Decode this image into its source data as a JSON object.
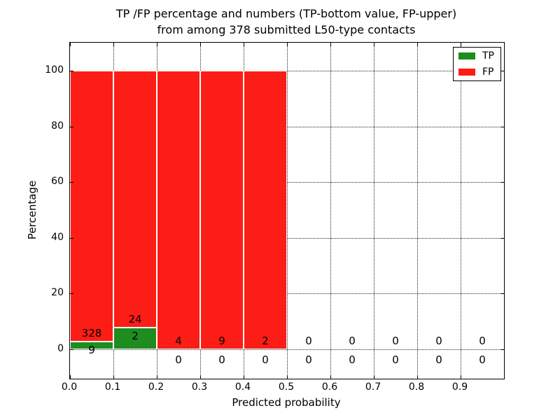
{
  "title": {
    "line1": "TP /FP percentage and numbers (TP-bottom value, FP-upper)",
    "line2": "from among 378 submitted L50-type contacts"
  },
  "legend": {
    "position": "upper right",
    "items": [
      {
        "label": "TP",
        "color": "#1e8c1e"
      },
      {
        "label": "FP",
        "color": "#fc1d16"
      }
    ]
  },
  "chart_data": {
    "type": "bar",
    "stacked": true,
    "title": "TP /FP percentage and numbers (TP-bottom value, FP-upper) from among 378 submitted L50-type contacts",
    "xlabel": "Predicted probability",
    "ylabel": "Percentage",
    "total_contacts": 378,
    "xlim": [
      0.0,
      1.0
    ],
    "ylim": [
      -10.5,
      110
    ],
    "grid": "dotted",
    "x_tick_labels": [
      "0.0",
      "0.1",
      "0.2",
      "0.3",
      "0.4",
      "0.5",
      "0.6",
      "0.7",
      "0.8",
      "0.9"
    ],
    "y_tick_labels": [
      "0",
      "20",
      "40",
      "60",
      "80",
      "100"
    ],
    "y_tick_values": [
      0,
      20,
      40,
      60,
      80,
      100
    ],
    "series": [
      {
        "name": "TP",
        "color": "#1e8c1e"
      },
      {
        "name": "FP",
        "color": "#fc1d16"
      }
    ],
    "bins": [
      {
        "range": [
          0.0,
          0.1
        ],
        "tp_count": 9,
        "fp_count": 328,
        "tp_pct": 2.67,
        "fp_pct": 97.33
      },
      {
        "range": [
          0.1,
          0.2
        ],
        "tp_count": 2,
        "fp_count": 24,
        "tp_pct": 7.69,
        "fp_pct": 92.31
      },
      {
        "range": [
          0.2,
          0.3
        ],
        "tp_count": 0,
        "fp_count": 4,
        "tp_pct": 0,
        "fp_pct": 100
      },
      {
        "range": [
          0.3,
          0.4
        ],
        "tp_count": 0,
        "fp_count": 9,
        "tp_pct": 0,
        "fp_pct": 100
      },
      {
        "range": [
          0.4,
          0.5
        ],
        "tp_count": 0,
        "fp_count": 2,
        "tp_pct": 0,
        "fp_pct": 100
      },
      {
        "range": [
          0.5,
          0.6
        ],
        "tp_count": 0,
        "fp_count": 0,
        "tp_pct": 0,
        "fp_pct": 0
      },
      {
        "range": [
          0.6,
          0.7
        ],
        "tp_count": 0,
        "fp_count": 0,
        "tp_pct": 0,
        "fp_pct": 0
      },
      {
        "range": [
          0.7,
          0.8
        ],
        "tp_count": 0,
        "fp_count": 0,
        "tp_pct": 0,
        "fp_pct": 0
      },
      {
        "range": [
          0.8,
          0.9
        ],
        "tp_count": 0,
        "fp_count": 0,
        "tp_pct": 0,
        "fp_pct": 0
      },
      {
        "range": [
          0.9,
          1.0
        ],
        "tp_count": 0,
        "fp_count": 0,
        "tp_pct": 0,
        "fp_pct": 0
      }
    ]
  }
}
